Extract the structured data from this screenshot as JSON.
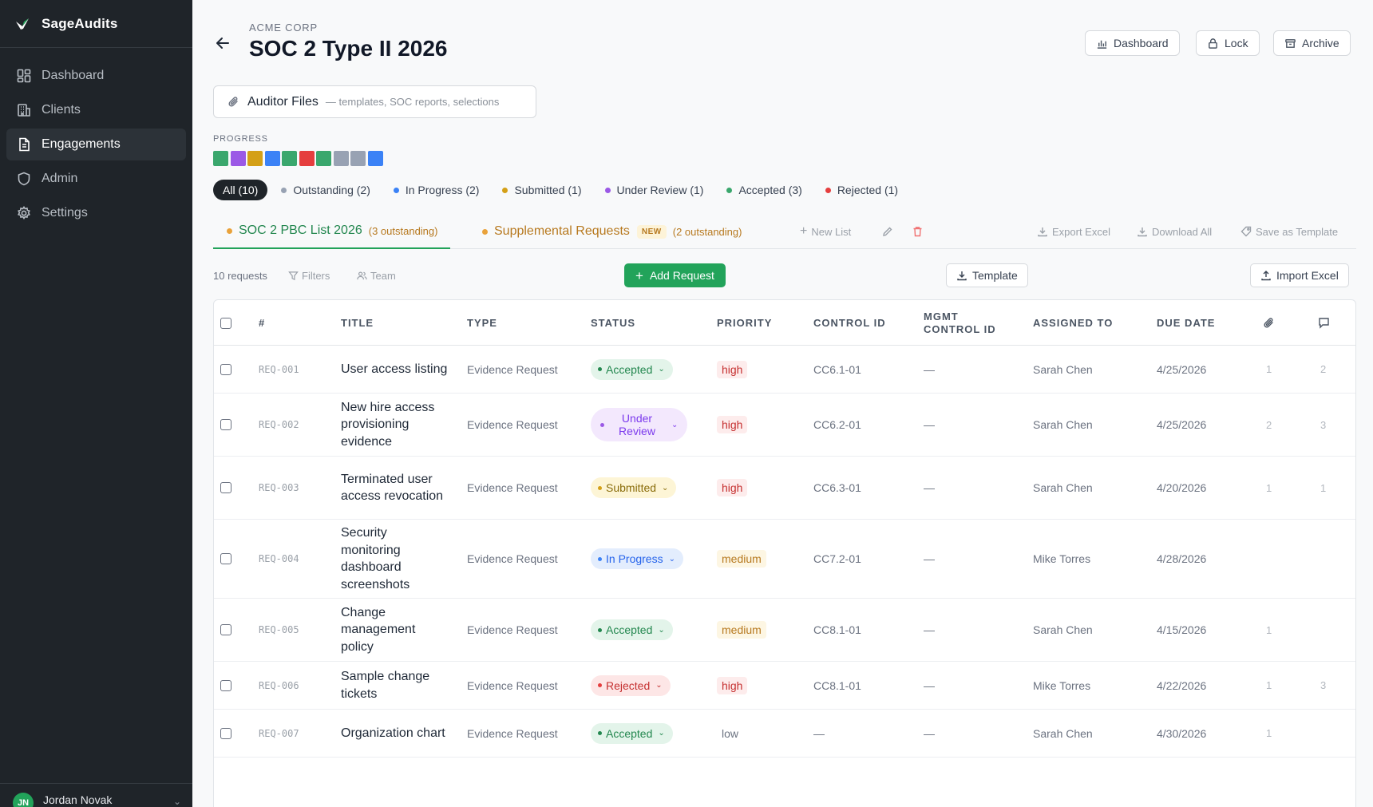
{
  "app": {
    "name": "SageAudits"
  },
  "sidebar": {
    "items": [
      {
        "label": "Dashboard",
        "icon": "dashboard-icon",
        "active": false
      },
      {
        "label": "Clients",
        "icon": "building-icon",
        "active": false
      },
      {
        "label": "Engagements",
        "icon": "document-icon",
        "active": true
      },
      {
        "label": "Admin",
        "icon": "shield-icon",
        "active": false
      },
      {
        "label": "Settings",
        "icon": "gear-icon",
        "active": false
      }
    ],
    "user": {
      "initials": "JN",
      "name": "Jordan Novak"
    }
  },
  "header": {
    "org": "ACME CORP",
    "title": "SOC 2 Type II 2026",
    "buttons": {
      "dashboard": "Dashboard",
      "lock": "Lock",
      "archive": "Archive"
    }
  },
  "auditor_files": {
    "label": "Auditor Files",
    "sub": "— templates, SOC reports, selections"
  },
  "progress": {
    "label": "PROGRESS",
    "blocks": [
      "#3aa76d",
      "#9b59e6",
      "#d4a017",
      "#3b82f6",
      "#3aa76d",
      "#e53e3e",
      "#3aa76d",
      "#98a2b3",
      "#98a2b3",
      "#3b82f6"
    ]
  },
  "filters": [
    {
      "label": "All (10)",
      "color": "",
      "active": true
    },
    {
      "label": "Outstanding (2)",
      "color": "#98a2b3",
      "active": false
    },
    {
      "label": "In Progress (2)",
      "color": "#3b82f6",
      "active": false
    },
    {
      "label": "Submitted (1)",
      "color": "#d4a017",
      "active": false
    },
    {
      "label": "Under Review (1)",
      "color": "#9b59e6",
      "active": false
    },
    {
      "label": "Accepted (3)",
      "color": "#3aa76d",
      "active": false
    },
    {
      "label": "Rejected (1)",
      "color": "#e53e3e",
      "active": false
    }
  ],
  "list_tabs": {
    "tab1": {
      "label": "SOC 2 PBC List 2026",
      "count": "(3 outstanding)",
      "dot": "#e9a23b"
    },
    "tab2": {
      "label": "Supplemental Requests",
      "badge": "NEW",
      "count": "(2 outstanding)",
      "dot": "#e9a23b"
    },
    "new_list": "New List",
    "export_excel": "Export Excel",
    "download_all": "Download All",
    "save_template": "Save as Template"
  },
  "toolbar": {
    "count": "10 requests",
    "filters": "Filters",
    "team": "Team",
    "add_request": "Add Request",
    "template": "Template",
    "import_excel": "Import Excel"
  },
  "table": {
    "headers": {
      "num": "#",
      "title": "TITLE",
      "type": "TYPE",
      "status": "STATUS",
      "priority": "PRIORITY",
      "control_id": "CONTROL ID",
      "mgmt_control_id": "MGMT CONTROL ID",
      "assigned_to": "ASSIGNED TO",
      "due_date": "DUE DATE"
    },
    "rows": [
      {
        "id": "REQ-001",
        "title": "User access listing",
        "type": "Evidence Request",
        "status": "Accepted",
        "priority": "high",
        "control_id": "CC6.1-01",
        "mgmt_control_id": "—",
        "assigned_to": "Sarah Chen",
        "due": "4/25/2026",
        "files": "1",
        "comments": "2"
      },
      {
        "id": "REQ-002",
        "title": "New hire access provisioning evidence",
        "type": "Evidence Request",
        "status": "Under Review",
        "priority": "high",
        "control_id": "CC6.2-01",
        "mgmt_control_id": "—",
        "assigned_to": "Sarah Chen",
        "due": "4/25/2026",
        "files": "2",
        "comments": "3"
      },
      {
        "id": "REQ-003",
        "title": "Terminated user access revocation",
        "type": "Evidence Request",
        "status": "Submitted",
        "priority": "high",
        "control_id": "CC6.3-01",
        "mgmt_control_id": "—",
        "assigned_to": "Sarah Chen",
        "due": "4/20/2026",
        "files": "1",
        "comments": "1"
      },
      {
        "id": "REQ-004",
        "title": "Security monitoring dashboard screenshots",
        "type": "Evidence Request",
        "status": "In Progress",
        "priority": "medium",
        "control_id": "CC7.2-01",
        "mgmt_control_id": "—",
        "assigned_to": "Mike Torres",
        "due": "4/28/2026",
        "files": "",
        "comments": ""
      },
      {
        "id": "REQ-005",
        "title": "Change management policy",
        "type": "Evidence Request",
        "status": "Accepted",
        "priority": "medium",
        "control_id": "CC8.1-01",
        "mgmt_control_id": "—",
        "assigned_to": "Sarah Chen",
        "due": "4/15/2026",
        "files": "1",
        "comments": ""
      },
      {
        "id": "REQ-006",
        "title": "Sample change tickets",
        "type": "Evidence Request",
        "status": "Rejected",
        "priority": "high",
        "control_id": "CC8.1-01",
        "mgmt_control_id": "—",
        "assigned_to": "Mike Torres",
        "due": "4/22/2026",
        "files": "1",
        "comments": "3"
      },
      {
        "id": "REQ-007",
        "title": "Organization chart",
        "type": "Evidence Request",
        "status": "Accepted",
        "priority": "low",
        "control_id": "—",
        "mgmt_control_id": "—",
        "assigned_to": "Sarah Chen",
        "due": "4/30/2026",
        "files": "1",
        "comments": ""
      }
    ]
  },
  "status_colors": {
    "Accepted": {
      "bg": "#e3f4ea",
      "fg": "#23874f",
      "dot": "#23874f"
    },
    "Under Review": {
      "bg": "#f3e8fd",
      "fg": "#7c3aed",
      "dot": "#9b59e6"
    },
    "Submitted": {
      "bg": "#fdf5d6",
      "fg": "#8a6d0b",
      "dot": "#d4a017"
    },
    "In Progress": {
      "bg": "#e3edfd",
      "fg": "#2563eb",
      "dot": "#3b82f6"
    },
    "Rejected": {
      "bg": "#fde6e6",
      "fg": "#c53030",
      "dot": "#e53e3e"
    }
  }
}
